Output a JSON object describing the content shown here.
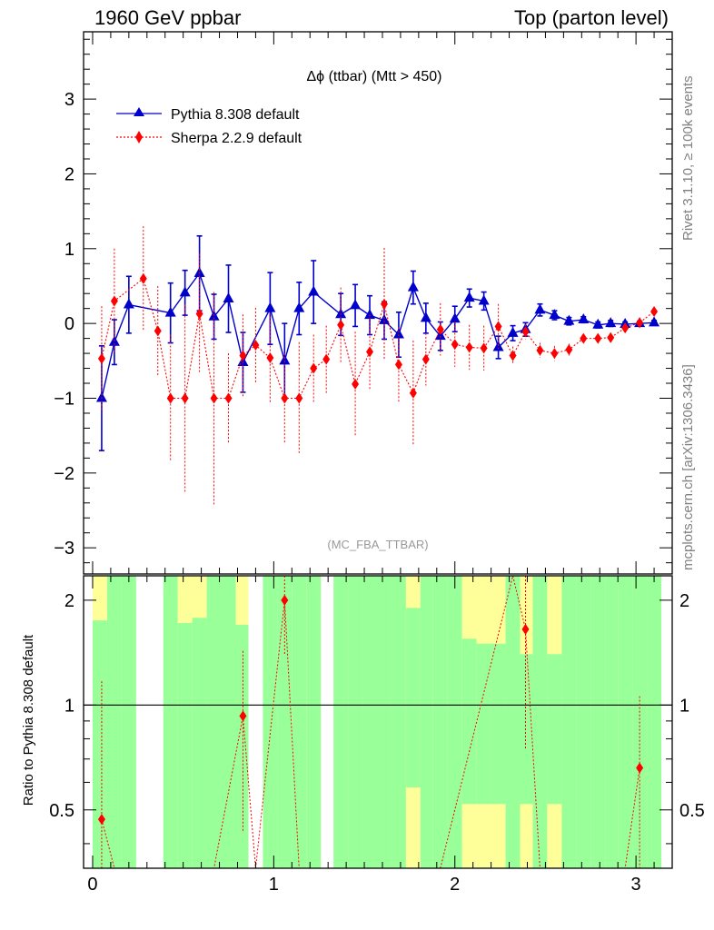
{
  "header": {
    "left": "1960 GeV ppbar",
    "right": "Top (parton level)"
  },
  "side_labels": {
    "rivet": "Rivet 3.1.10, ≥ 100k events",
    "mcplots": "mcplots.cern.ch [arXiv:1306.3436]"
  },
  "chart_data": {
    "type": "line",
    "title": "Δϕ (ttbar) (Mtt > 450)",
    "analysis_label": "(MC_FBA_TTBAR)",
    "xlim": [
      -0.05,
      3.2
    ],
    "ylim_main": [
      -3.35,
      3.9
    ],
    "ylim_ratio": [
      0.34,
      2.35
    ],
    "ratio_scale": "log",
    "x_ticks": [
      0,
      1,
      2,
      3
    ],
    "y_ticks_main": [
      -3,
      -2,
      -1,
      0,
      1,
      2,
      3
    ],
    "y_ticks_ratio": [
      0.5,
      1,
      2
    ],
    "ratio_ylabel": "Ratio to Pythia 8.308 default",
    "legend_position": "top-left",
    "series": [
      {
        "name": "Pythia 8.308 default",
        "color": "#0000cc",
        "marker": "triangle",
        "line": "solid",
        "x": [
          0.05,
          0.12,
          0.2,
          0.43,
          0.51,
          0.59,
          0.67,
          0.75,
          0.83,
          0.98,
          1.06,
          1.14,
          1.22,
          1.37,
          1.45,
          1.53,
          1.61,
          1.69,
          1.77,
          1.84,
          1.92,
          2.0,
          2.08,
          2.16,
          2.24,
          2.32,
          2.39,
          2.47,
          2.55,
          2.63,
          2.71,
          2.79,
          2.86,
          2.94,
          3.02,
          3.1
        ],
        "y": [
          -1.0,
          -0.25,
          0.25,
          0.14,
          0.41,
          0.67,
          0.09,
          0.33,
          -0.52,
          0.2,
          -0.5,
          0.2,
          0.42,
          0.12,
          0.24,
          0.11,
          0.04,
          -0.15,
          0.48,
          0.07,
          -0.17,
          0.06,
          0.34,
          0.3,
          -0.32,
          -0.13,
          -0.08,
          0.18,
          0.11,
          0.03,
          0.05,
          -0.02,
          0.0,
          -0.01,
          0.0,
          0.01
        ],
        "yerr": [
          0.7,
          0.3,
          0.38,
          0.4,
          0.3,
          0.5,
          0.3,
          0.45,
          0.4,
          0.48,
          0.5,
          0.35,
          0.42,
          0.28,
          0.28,
          0.26,
          0.25,
          0.3,
          0.22,
          0.2,
          0.19,
          0.17,
          0.12,
          0.12,
          0.15,
          0.1,
          0.09,
          0.08,
          0.06,
          0.05,
          0.04,
          0.04,
          0.04,
          0.03,
          0.03,
          0.03
        ]
      },
      {
        "name": "Sherpa 2.2.9 default",
        "color": "#ff0000",
        "marker": "diamond",
        "line": "dotted",
        "x": [
          0.05,
          0.12,
          0.28,
          0.36,
          0.43,
          0.51,
          0.59,
          0.67,
          0.75,
          0.83,
          0.9,
          0.98,
          1.06,
          1.14,
          1.22,
          1.29,
          1.37,
          1.45,
          1.53,
          1.61,
          1.69,
          1.77,
          1.84,
          1.92,
          2.0,
          2.08,
          2.16,
          2.24,
          2.32,
          2.39,
          2.47,
          2.55,
          2.63,
          2.71,
          2.79,
          2.86,
          2.94,
          3.02,
          3.1
        ],
        "y": [
          -0.47,
          0.3,
          0.6,
          -0.1,
          -1.0,
          -1.0,
          0.13,
          -1.0,
          -1.0,
          -0.43,
          -0.29,
          -0.46,
          -1.0,
          -1.0,
          -0.6,
          -0.48,
          -0.02,
          -0.81,
          -0.38,
          0.26,
          -0.55,
          -0.93,
          -0.48,
          -0.08,
          -0.28,
          -0.32,
          -0.33,
          -0.04,
          -0.43,
          -0.11,
          -0.36,
          -0.4,
          -0.35,
          -0.2,
          -0.2,
          -0.19,
          -0.06,
          0.01,
          0.16
        ],
        "yerr": [
          0.7,
          0.7,
          0.7,
          0.6,
          0.85,
          1.25,
          0.8,
          1.42,
          0.6,
          0.55,
          0.5,
          0.6,
          0.6,
          0.75,
          0.45,
          0.45,
          0.5,
          0.7,
          0.5,
          0.75,
          0.5,
          0.7,
          0.35,
          0.35,
          0.3,
          0.3,
          0.3,
          0.3,
          0.12,
          0.1,
          0.1,
          0.1,
          0.08,
          0.06,
          0.06,
          0.06,
          0.05,
          0.04,
          0.04
        ]
      }
    ],
    "ratio": {
      "reference": "Pythia 8.308 default",
      "bins": [
        0.0,
        0.08,
        0.16,
        0.24,
        0.39,
        0.47,
        0.55,
        0.63,
        0.71,
        0.79,
        0.86,
        0.94,
        1.02,
        1.1,
        1.18,
        1.26,
        1.33,
        1.41,
        1.49,
        1.57,
        1.65,
        1.73,
        1.81,
        1.88,
        1.96,
        2.04,
        2.12,
        2.2,
        2.28,
        2.36,
        2.43,
        2.51,
        2.59,
        2.67,
        2.75,
        2.83,
        2.9,
        2.98,
        3.06,
        3.14
      ],
      "green_lo": [
        0.34,
        0.34,
        0.34,
        null,
        0.34,
        0.34,
        0.34,
        0.34,
        0.34,
        0.34,
        null,
        0.34,
        0.34,
        0.34,
        0.34,
        null,
        0.34,
        0.34,
        0.34,
        0.34,
        0.34,
        0.58,
        0.34,
        0.34,
        0.34,
        0.52,
        0.52,
        0.52,
        0.34,
        0.52,
        0.34,
        0.52,
        0.34,
        0.34,
        0.34,
        0.34,
        0.34,
        0.34,
        0.34
      ],
      "green_hi": [
        1.75,
        2.35,
        2.35,
        null,
        2.35,
        1.72,
        1.78,
        2.35,
        2.35,
        1.7,
        null,
        2.35,
        2.35,
        2.35,
        2.35,
        null,
        2.35,
        2.35,
        2.35,
        2.35,
        2.35,
        1.9,
        2.35,
        2.35,
        2.35,
        1.55,
        1.5,
        1.5,
        2.35,
        1.4,
        2.35,
        1.4,
        2.35,
        2.35,
        2.35,
        2.35,
        2.35,
        2.35,
        2.35
      ],
      "yellow_lo": [
        0.34,
        null,
        null,
        null,
        null,
        0.34,
        0.34,
        0.34,
        null,
        0.34,
        null,
        null,
        null,
        null,
        0.34,
        null,
        null,
        0.34,
        null,
        0.34,
        0.34,
        0.34,
        null,
        0.34,
        null,
        0.34,
        0.34,
        0.34,
        null,
        0.34,
        0.34,
        0.34,
        null,
        null,
        null,
        null,
        0.34,
        null,
        0.34
      ],
      "yellow_hi": [
        2.35,
        null,
        null,
        null,
        null,
        2.35,
        2.35,
        2.35,
        null,
        2.35,
        null,
        null,
        null,
        null,
        2.35,
        null,
        null,
        2.35,
        null,
        2.35,
        2.35,
        2.35,
        null,
        2.35,
        null,
        2.35,
        2.35,
        2.35,
        null,
        2.35,
        2.35,
        2.35,
        null,
        null,
        null,
        null,
        2.35,
        null,
        2.35
      ],
      "sherpa_x": [
        0.05,
        0.12,
        0.36,
        0.51,
        0.67,
        0.83,
        0.9,
        1.06,
        1.14,
        1.37,
        1.53,
        1.77,
        1.92,
        2.32,
        2.39,
        2.47,
        2.63,
        2.79,
        2.94,
        3.02
      ],
      "sherpa_ratio": [
        0.47,
        0.3,
        0.25,
        0.3,
        0.3,
        0.93,
        0.25,
        2.0,
        0.3,
        0.3,
        0.3,
        0.3,
        0.3,
        2.5,
        1.65,
        0.3,
        0.3,
        0.3,
        0.3,
        0.66
      ],
      "sherpa_ratio_err": [
        0.7,
        0.0,
        0.0,
        0.0,
        0.0,
        0.5,
        0.0,
        0.6,
        0.0,
        0.0,
        0.0,
        0.0,
        0.0,
        0.0,
        0.9,
        0.0,
        0.0,
        0.0,
        0.0,
        0.4
      ]
    }
  }
}
